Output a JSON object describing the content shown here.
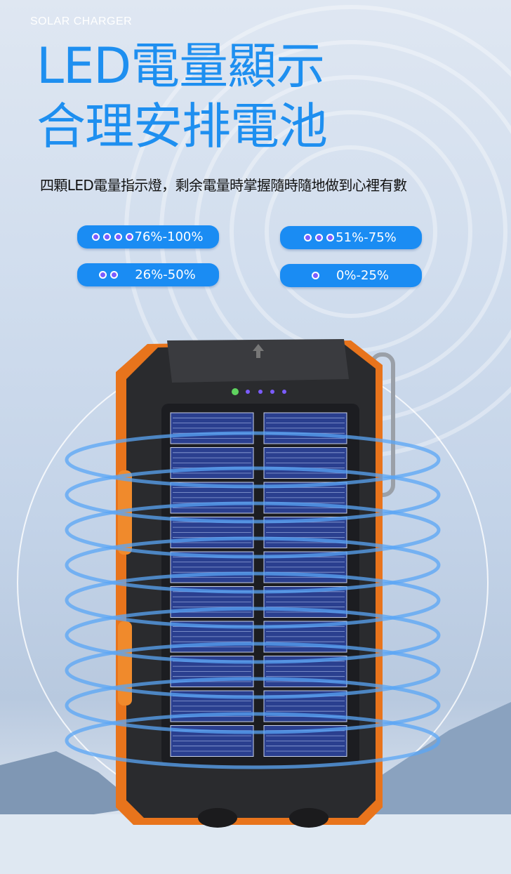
{
  "header": {
    "subtitle": "SOLAR CHARGER",
    "title_line1": "LED電量顯示",
    "title_line2": "合理安排電池",
    "description": "四顆LED電量指示燈，剩余電量時掌握隨時隨地做到心裡有數"
  },
  "indicators": [
    {
      "dots": 4,
      "label": "76%-100%"
    },
    {
      "dots": 3,
      "label": "51%-75%"
    },
    {
      "dots": 2,
      "label": "26%-50%"
    },
    {
      "dots": 1,
      "label": "0%-25%"
    }
  ],
  "colors": {
    "accent": "#1e8ff0",
    "pill": "#1a8cf3",
    "led": "#7b5cff",
    "device_orange": "#e8741c",
    "device_body": "#2a2b2e"
  }
}
